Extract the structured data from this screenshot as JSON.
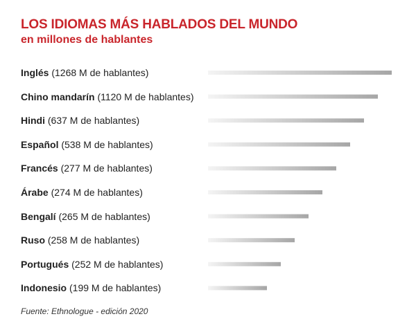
{
  "header": {
    "title": "LOS IDIOMAS MÁS HABLADOS DEL MUNDO",
    "subtitle": "en millones de hablantes"
  },
  "footer": {
    "source": "Fuente: Ethnologue - edición 2020"
  },
  "colors": {
    "accent": "#c9252b",
    "bar_light": "#f2f2f2",
    "bar_dark": "#a9a9a9"
  },
  "chart_data": {
    "type": "bar",
    "orientation": "horizontal",
    "title": "LOS IDIOMAS MÁS HABLADOS DEL MUNDO",
    "subtitle": "en millones de hablantes",
    "categories": [
      "Inglés",
      "Chino mandarín",
      "Hindi",
      "Español",
      "Francés",
      "Árabe",
      "Bengalí",
      "Ruso",
      "Portugués",
      "Indonesio"
    ],
    "value_labels": [
      "(1268 M de hablantes)",
      "(1120 M de hablantes)",
      "(637 M de hablantes)",
      "(538 M de hablantes)",
      "(277 M de hablantes)",
      "(274 M de hablantes)",
      "(265 M de hablantes)",
      "(258 M de hablantes)",
      "(252 M de hablantes)",
      "(199 M de hablantes)"
    ],
    "values": [
      1268,
      1120,
      637,
      538,
      277,
      274,
      265,
      258,
      252,
      199
    ],
    "bar_rank_lengths_note": "",
    "xlabel": "",
    "ylabel": "",
    "grid": false,
    "legend": "none"
  }
}
